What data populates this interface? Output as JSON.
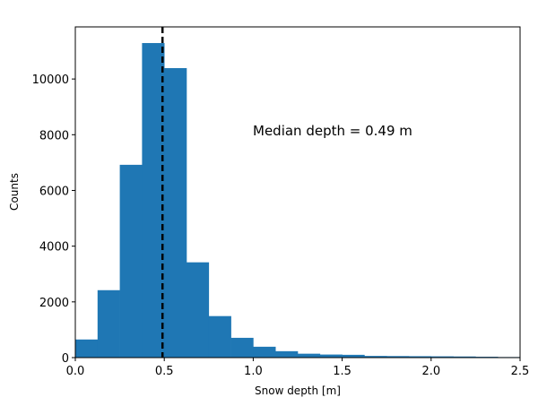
{
  "chart_data": {
    "type": "bar",
    "subtype": "histogram",
    "title": "",
    "xlabel": "Snow depth [m]",
    "ylabel": "Counts",
    "xlim": [
      0,
      2.5
    ],
    "ylim": [
      0,
      11870
    ],
    "grid": false,
    "legend": null,
    "bar_color": "#1f77b4",
    "bin_width": 0.125,
    "bin_edges": [
      0.0,
      0.125,
      0.25,
      0.375,
      0.5,
      0.625,
      0.75,
      0.875,
      1.0,
      1.125,
      1.25,
      1.375,
      1.5,
      1.625,
      1.75,
      1.875,
      2.0,
      2.125,
      2.25,
      2.375,
      2.5
    ],
    "values": [
      650,
      2420,
      6920,
      11290,
      10390,
      3420,
      1490,
      710,
      390,
      230,
      140,
      110,
      100,
      60,
      55,
      50,
      45,
      40,
      30,
      20
    ],
    "xticks": [
      0.0,
      0.5,
      1.0,
      1.5,
      2.0,
      2.5
    ],
    "xtick_labels": [
      "0.0",
      "0.5",
      "1.0",
      "1.5",
      "2.0",
      "2.5"
    ],
    "yticks": [
      0,
      2000,
      4000,
      6000,
      8000,
      10000
    ],
    "ytick_labels": [
      "0",
      "2000",
      "4000",
      "6000",
      "8000",
      "10000"
    ],
    "median_line": {
      "x": 0.49,
      "style": "dashed",
      "color": "#000000"
    },
    "annotations": [
      {
        "text": "Median depth = 0.49 m",
        "x": 1.0,
        "y": 8000
      }
    ]
  }
}
